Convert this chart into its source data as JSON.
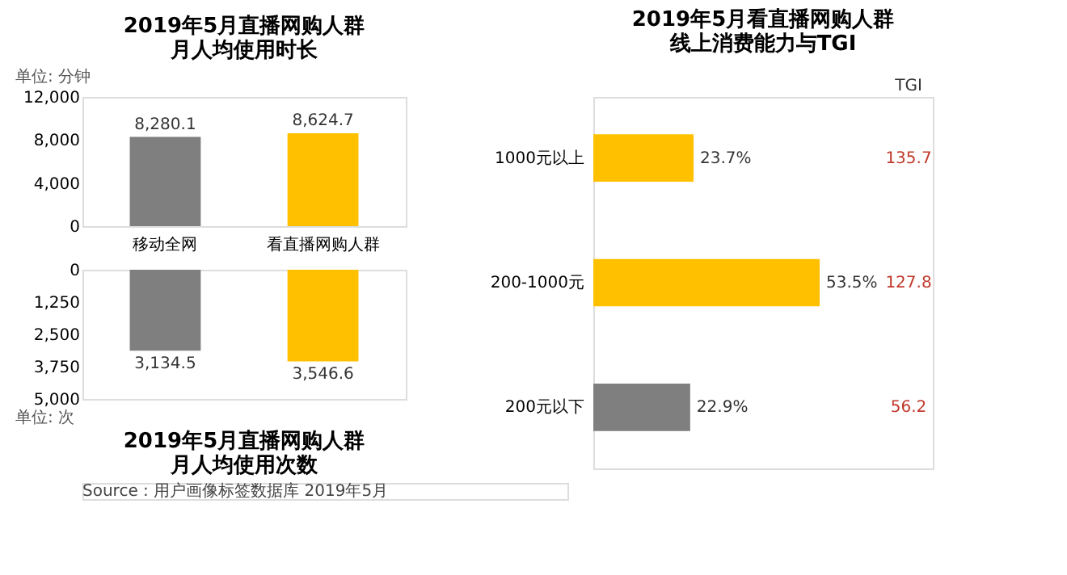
{
  "chart_data": [
    {
      "type": "bar",
      "title": "2019年5月直播网购人群",
      "subtitle": "月人均使用时长",
      "ylabel": "单位: 分钟",
      "categories": [
        "移动全网",
        "看直播网购人群"
      ],
      "values": [
        8280.1,
        8624.7
      ],
      "colors": [
        "#7f7f7f",
        "#ffc000"
      ],
      "ylim": [
        0,
        12000
      ],
      "yticks": [
        0,
        {
          "value": 4000,
          "label": "4,000"
        },
        {
          "value": 8000,
          "label": "8,000"
        },
        {
          "value": 12000,
          "label": "12,000"
        }
      ],
      "value_labels": [
        "8,280.1",
        "8,624.7"
      ]
    },
    {
      "type": "bar",
      "title": "2019年5月直播网购人群",
      "subtitle": "月人均使用次数",
      "ylabel": "单位: 次",
      "categories": [
        null,
        null
      ],
      "values": [
        3134.5,
        3546.6
      ],
      "colors": [
        "#7f7f7f",
        "#ffc000"
      ],
      "ylim": [
        5000,
        0
      ],
      "yticks": [
        0,
        {
          "value": 1250,
          "label": "1,250"
        },
        {
          "value": 2500,
          "label": "2,500"
        },
        {
          "value": 3750,
          "label": "3,750"
        },
        {
          "value": 5000,
          "label": "5,000"
        }
      ],
      "value_labels": [
        "3,134.5",
        "3,546.6"
      ],
      "tick_labels": "y",
      "annotations": [
        "Source : 用户画像标签数据库 2019年5月"
      ]
    },
    {
      "type": "bar",
      "orientation": "horizontal",
      "title": "2019年5月看直播网购人群",
      "subtitle": "线上消费能力与TGI",
      "categories": [
        "1000元以上",
        "200-1000元",
        "200元以下"
      ],
      "values": [
        23.7,
        53.5,
        22.9
      ],
      "colors": [
        "#ffc000",
        "#ffc000",
        "#7f7f7f"
      ],
      "value_labels": [
        "23.7%",
        "53.5%",
        "22.9%"
      ],
      "annotations": [
        "TGI",
        "135.7",
        "127.8",
        "56.2"
      ]
    }
  ]
}
